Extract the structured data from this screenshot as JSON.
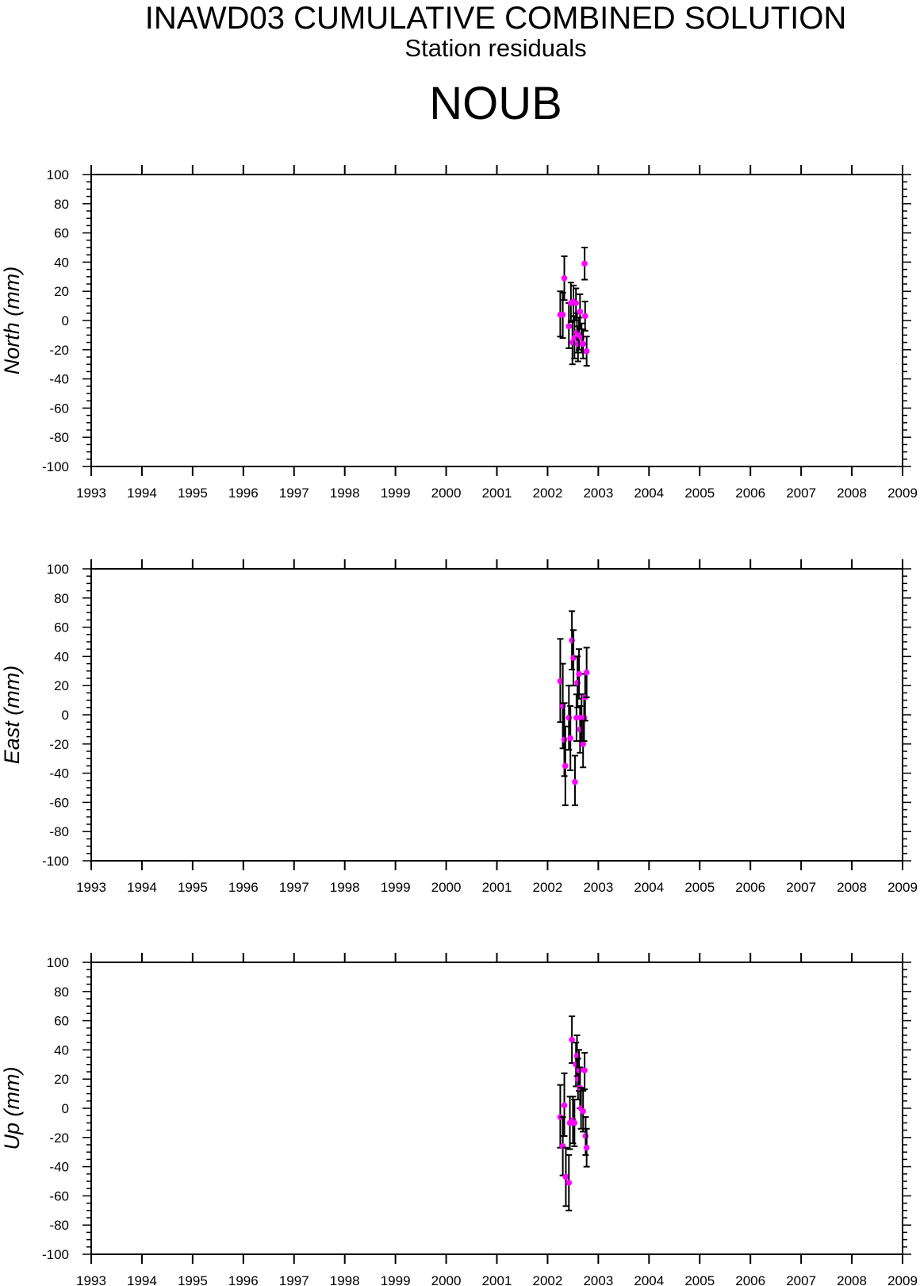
{
  "header": {
    "title": "INAWD03 CUMULATIVE COMBINED SOLUTION",
    "subtitle": "Station residuals",
    "station": "NOUB"
  },
  "colors": {
    "marker": "#ff00ff",
    "axis": "#000000",
    "errorbar": "#000000"
  },
  "chart_data": [
    {
      "type": "scatter",
      "ylabel": "North (mm)",
      "xlim": [
        1993,
        2009
      ],
      "ylim": [
        -100,
        100
      ],
      "xticks": [
        "1993",
        "1994",
        "1995",
        "1996",
        "1997",
        "1998",
        "1999",
        "2000",
        "2001",
        "2002",
        "2003",
        "2004",
        "2005",
        "2006",
        "2007",
        "2008",
        "2009"
      ],
      "yticks": [
        "100",
        "80",
        "60",
        "40",
        "20",
        "0",
        "-20",
        "-40",
        "-60",
        "-80",
        "-100"
      ],
      "grid": false,
      "points": [
        {
          "x": 2002.25,
          "y": 4,
          "lo": -11,
          "hi": 20
        },
        {
          "x": 2002.3,
          "y": 4,
          "lo": -12,
          "hi": 19
        },
        {
          "x": 2002.33,
          "y": 29,
          "lo": 14,
          "hi": 44
        },
        {
          "x": 2002.42,
          "y": -4,
          "lo": -19,
          "hi": 12
        },
        {
          "x": 2002.46,
          "y": 12,
          "lo": -1,
          "hi": 26
        },
        {
          "x": 2002.49,
          "y": -15,
          "lo": -30,
          "hi": 0
        },
        {
          "x": 2002.51,
          "y": 13,
          "lo": 0,
          "hi": 24
        },
        {
          "x": 2002.53,
          "y": -12,
          "lo": -26,
          "hi": 3
        },
        {
          "x": 2002.56,
          "y": 12,
          "lo": 0,
          "hi": 22
        },
        {
          "x": 2002.58,
          "y": -8,
          "lo": -22,
          "hi": 5
        },
        {
          "x": 2002.6,
          "y": -16,
          "lo": -28,
          "hi": -4
        },
        {
          "x": 2002.62,
          "y": -10,
          "lo": -20,
          "hi": 2
        },
        {
          "x": 2002.64,
          "y": 6,
          "lo": -6,
          "hi": 18
        },
        {
          "x": 2002.67,
          "y": -12,
          "lo": -22,
          "hi": -2
        },
        {
          "x": 2002.7,
          "y": -16,
          "lo": -26,
          "hi": -6
        },
        {
          "x": 2002.73,
          "y": 39,
          "lo": 28,
          "hi": 50
        },
        {
          "x": 2002.74,
          "y": 3,
          "lo": -7,
          "hi": 13
        },
        {
          "x": 2002.77,
          "y": -21,
          "lo": -31,
          "hi": -11
        }
      ]
    },
    {
      "type": "scatter",
      "ylabel": "East (mm)",
      "xlim": [
        1993,
        2009
      ],
      "ylim": [
        -100,
        100
      ],
      "xticks": [
        "1993",
        "1994",
        "1995",
        "1996",
        "1997",
        "1998",
        "1999",
        "2000",
        "2001",
        "2002",
        "2003",
        "2004",
        "2005",
        "2006",
        "2007",
        "2008",
        "2009"
      ],
      "yticks": [
        "100",
        "80",
        "60",
        "40",
        "20",
        "0",
        "-20",
        "-40",
        "-60",
        "-80",
        "-100"
      ],
      "grid": false,
      "points": [
        {
          "x": 2002.25,
          "y": 23,
          "lo": -5,
          "hi": 52
        },
        {
          "x": 2002.3,
          "y": 6,
          "lo": -23,
          "hi": 35
        },
        {
          "x": 2002.33,
          "y": -17,
          "lo": -42,
          "hi": 8
        },
        {
          "x": 2002.35,
          "y": -35,
          "lo": -62,
          "hi": -8
        },
        {
          "x": 2002.42,
          "y": -2,
          "lo": -24,
          "hi": 20
        },
        {
          "x": 2002.45,
          "y": -16,
          "lo": -38,
          "hi": 6
        },
        {
          "x": 2002.48,
          "y": 51,
          "lo": 31,
          "hi": 71
        },
        {
          "x": 2002.51,
          "y": 39,
          "lo": 20,
          "hi": 58
        },
        {
          "x": 2002.54,
          "y": -46,
          "lo": -62,
          "hi": -28
        },
        {
          "x": 2002.57,
          "y": -2,
          "lo": -18,
          "hi": 14
        },
        {
          "x": 2002.59,
          "y": 22,
          "lo": 5,
          "hi": 40
        },
        {
          "x": 2002.62,
          "y": 28,
          "lo": 11,
          "hi": 45
        },
        {
          "x": 2002.64,
          "y": -10,
          "lo": -26,
          "hi": 6
        },
        {
          "x": 2002.67,
          "y": -2,
          "lo": -18,
          "hi": 14
        },
        {
          "x": 2002.7,
          "y": -20,
          "lo": -36,
          "hi": -4
        },
        {
          "x": 2002.72,
          "y": -2,
          "lo": -18,
          "hi": 14
        },
        {
          "x": 2002.74,
          "y": 12,
          "lo": -4,
          "hi": 28
        },
        {
          "x": 2002.77,
          "y": 29,
          "lo": 12,
          "hi": 46
        }
      ]
    },
    {
      "type": "scatter",
      "ylabel": "Up (mm)",
      "xlim": [
        1993,
        2009
      ],
      "ylim": [
        -100,
        100
      ],
      "xticks": [
        "1993",
        "1994",
        "1995",
        "1996",
        "1997",
        "1998",
        "1999",
        "2000",
        "2001",
        "2002",
        "2003",
        "2004",
        "2005",
        "2006",
        "2007",
        "2008",
        "2009"
      ],
      "yticks": [
        "100",
        "80",
        "60",
        "40",
        "20",
        "0",
        "-20",
        "-40",
        "-60",
        "-80",
        "-100"
      ],
      "grid": false,
      "points": [
        {
          "x": 2002.25,
          "y": -6,
          "lo": -27,
          "hi": 16
        },
        {
          "x": 2002.3,
          "y": -26,
          "lo": -46,
          "hi": -6
        },
        {
          "x": 2002.33,
          "y": 2,
          "lo": -19,
          "hi": 24
        },
        {
          "x": 2002.36,
          "y": -47,
          "lo": -67,
          "hi": -27
        },
        {
          "x": 2002.42,
          "y": -51,
          "lo": -70,
          "hi": -32
        },
        {
          "x": 2002.44,
          "y": -10,
          "lo": -28,
          "hi": 8
        },
        {
          "x": 2002.48,
          "y": 47,
          "lo": 31,
          "hi": 63
        },
        {
          "x": 2002.5,
          "y": -8,
          "lo": -24,
          "hi": 8
        },
        {
          "x": 2002.53,
          "y": -10,
          "lo": -26,
          "hi": 6
        },
        {
          "x": 2002.56,
          "y": 30,
          "lo": 15,
          "hi": 45
        },
        {
          "x": 2002.58,
          "y": 36,
          "lo": 22,
          "hi": 50
        },
        {
          "x": 2002.6,
          "y": 20,
          "lo": 6,
          "hi": 34
        },
        {
          "x": 2002.62,
          "y": 26,
          "lo": 12,
          "hi": 40
        },
        {
          "x": 2002.64,
          "y": 14,
          "lo": 0,
          "hi": 28
        },
        {
          "x": 2002.66,
          "y": 0,
          "lo": -14,
          "hi": 14
        },
        {
          "x": 2002.7,
          "y": -2,
          "lo": -16,
          "hi": 12
        },
        {
          "x": 2002.73,
          "y": 26,
          "lo": 13,
          "hi": 38
        },
        {
          "x": 2002.75,
          "y": -19,
          "lo": -32,
          "hi": -6
        },
        {
          "x": 2002.77,
          "y": -27,
          "lo": -40,
          "hi": -14
        }
      ]
    }
  ]
}
